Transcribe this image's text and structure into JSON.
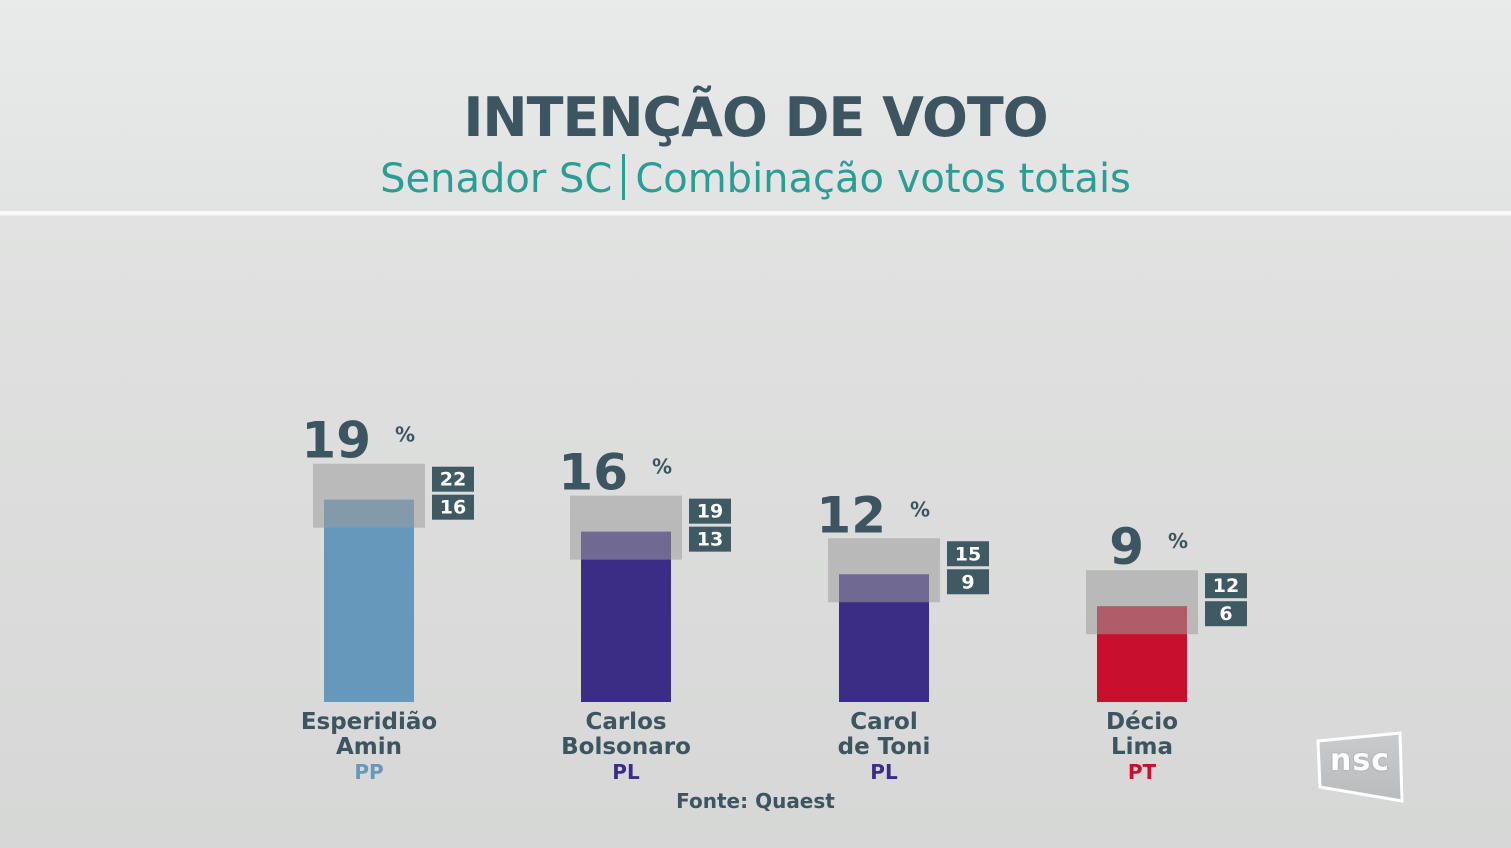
{
  "header": {
    "title": "INTENÇÃO DE VOTO",
    "subtitle_left": "Senador SC",
    "subtitle_right": "Combinação votos totais"
  },
  "footer": {
    "source": "Fonte: Quaest"
  },
  "logo": {
    "text": "nsc"
  },
  "colors": {
    "title": "#3c5560",
    "subtitle": "#2a9d95",
    "range_badge": "#3f5a63",
    "margin_box": "#9c9c9c"
  },
  "chart_data": {
    "type": "bar",
    "title": "INTENÇÃO DE VOTO",
    "subtitle": "Senador SC | Combinação votos totais",
    "value_unit": "%",
    "ylim": [
      0,
      22
    ],
    "grid": false,
    "categories": [
      {
        "name_line1": "Esperidião",
        "name_line2": "Amin",
        "party": "PP",
        "value": 19,
        "high": 22,
        "low": 16,
        "color": "#6598bb",
        "party_color": "#6598bb"
      },
      {
        "name_line1": "Carlos",
        "name_line2": "Bolsonaro",
        "party": "PL",
        "value": 16,
        "high": 19,
        "low": 13,
        "color": "#3b2d86",
        "party_color": "#3b2d86"
      },
      {
        "name_line1": "Carol",
        "name_line2": "de Toni",
        "party": "PL",
        "value": 12,
        "high": 15,
        "low": 9,
        "color": "#3b2d86",
        "party_color": "#3b2d86"
      },
      {
        "name_line1": "Décio",
        "name_line2": "Lima",
        "party": "PT",
        "value": 9,
        "high": 12,
        "low": 6,
        "color": "#c8102e",
        "party_color": "#c8102e"
      }
    ]
  }
}
